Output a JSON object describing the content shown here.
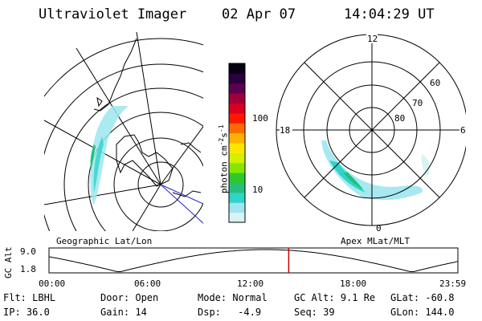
{
  "header": {
    "instrument": "Ultraviolet Imager",
    "date": "02 Apr 07",
    "time": "14:04:29 UT"
  },
  "left_panel": {
    "caption": "Geographic Lat/Lon"
  },
  "right_panel": {
    "caption": "Apex MLat/MLT",
    "mlt_labels": {
      "top": "12",
      "left": "18",
      "right": "6",
      "bottom": "0"
    },
    "mlat_labels": [
      "60",
      "70",
      "80"
    ]
  },
  "colorbar": {
    "axis_label": "photon cm",
    "exp1": "-2",
    "mid": "s",
    "exp2": "-1",
    "ticks": [
      "100",
      "10"
    ],
    "scale": "log",
    "colors": [
      "#d7f3f3",
      "#9ee6ee",
      "#2fd4c8",
      "#22c07a",
      "#2ec82e",
      "#86e600",
      "#d2f000",
      "#ffe600",
      "#ffb300",
      "#ff6a00",
      "#ff1800",
      "#d8001e",
      "#a0003a",
      "#5c0050",
      "#2a0040",
      "#0a0014"
    ]
  },
  "altitude_chart": {
    "y_axis_label": "GC Alt",
    "y_ticks": [
      "9.0",
      "1.8"
    ],
    "x_ticks": [
      "00:00",
      "06:00",
      "12:00",
      "18:00",
      "23:59"
    ],
    "marker_color": "#cc0000",
    "marker_time_hours": 14.07
  },
  "status": {
    "row1": [
      {
        "label": "Flt:",
        "value": "LBHL"
      },
      {
        "label": "Door:",
        "value": "Open"
      },
      {
        "label": "Mode:",
        "value": "Normal"
      },
      {
        "label": "GC Alt:",
        "value": "9.1 Re"
      },
      {
        "label": "GLat:",
        "value": "-60.8"
      }
    ],
    "row2": [
      {
        "label": "IP:",
        "value": "36.0"
      },
      {
        "label": "Gain:",
        "value": "14"
      },
      {
        "label": "Dsp:",
        "value": "-4.9"
      },
      {
        "label": "Seq:",
        "value": "39"
      },
      {
        "label": "GLon:",
        "value": "144.0"
      }
    ]
  }
}
